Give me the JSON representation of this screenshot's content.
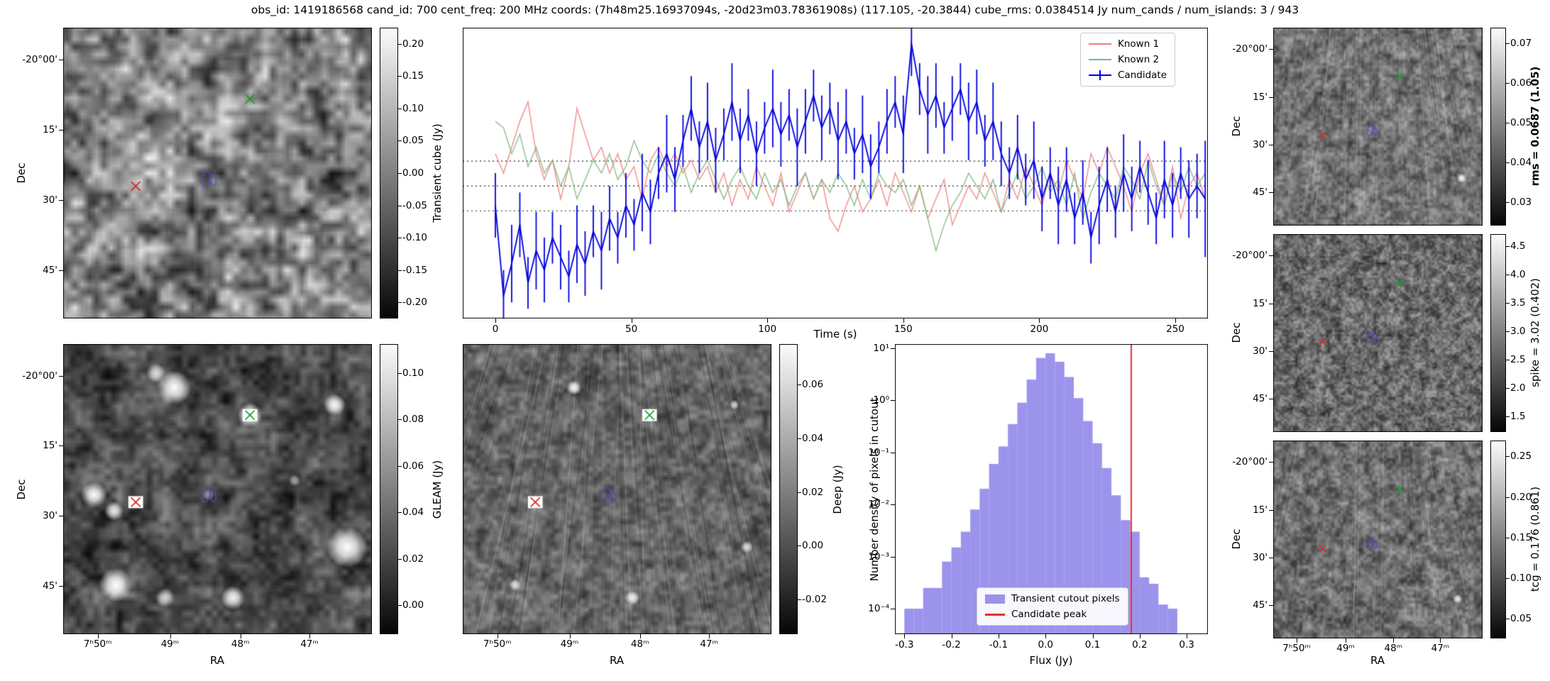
{
  "title": "obs_id: 1419186568 cand_id: 700 cent_freq: 200 MHz coords: (7h48m25.16937094s, -20d23m03.78361908s) (117.105, -20.3844) cube_rms: 0.0384514 Jy num_cands / num_islands: 3 / 943",
  "axis_labels": {
    "dec": "Dec",
    "ra": "RA",
    "time": "Time (s)",
    "flux": "Flux (Jy)"
  },
  "dec_ticks": [
    "-20°00'",
    "15'",
    "30'",
    "45'"
  ],
  "ra_ticks": [
    "7ʰ50ᵐ",
    "49ᵐ",
    "48ᵐ",
    "47ᵐ"
  ],
  "colorbars": {
    "transient": {
      "label": "Transient cube (Jy)",
      "ticks": [
        "0.20",
        "0.15",
        "0.10",
        "0.05",
        "0.00",
        "-0.05",
        "-0.10",
        "-0.15",
        "-0.20"
      ]
    },
    "gleam": {
      "label": "GLEAM (Jy)",
      "ticks": [
        "0.10",
        "0.08",
        "0.06",
        "0.04",
        "0.02",
        "0.00"
      ]
    },
    "deep": {
      "label": "Deep (Jy)",
      "ticks": [
        "0.06",
        "0.04",
        "0.02",
        "0.00",
        "-0.02"
      ]
    },
    "rms": {
      "label": "rms = 0.0687 (1.05)",
      "bold": true,
      "ticks": [
        "0.07",
        "0.06",
        "0.05",
        "0.04",
        "0.03"
      ]
    },
    "spike": {
      "label": "spike = 3.02 (0.402)",
      "ticks": [
        "4.5",
        "4.0",
        "3.5",
        "3.0",
        "2.5",
        "2.0",
        "1.5"
      ]
    },
    "tcg": {
      "label": "tcg = 0.176 (0.861)",
      "ticks": [
        "0.25",
        "0.20",
        "0.15",
        "0.10",
        "0.05"
      ]
    }
  },
  "markers": {
    "known1": {
      "color": "#d42a2a",
      "pos": [
        0.235,
        0.545
      ]
    },
    "known2": {
      "color": "#1f9e2c",
      "pos": [
        0.605,
        0.245
      ]
    },
    "candidate": {
      "color": "#4a4ad0",
      "pos": [
        0.473,
        0.52
      ]
    }
  },
  "images": {
    "gleam_sources": [
      [
        0.36,
        0.15,
        14,
        1.0
      ],
      [
        0.3,
        0.1,
        8,
        0.8
      ],
      [
        0.605,
        0.245,
        10,
        1.0
      ],
      [
        0.88,
        0.21,
        9,
        0.95
      ],
      [
        0.1,
        0.52,
        11,
        1.0
      ],
      [
        0.165,
        0.575,
        8,
        0.9
      ],
      [
        0.92,
        0.7,
        17,
        1.0
      ],
      [
        0.17,
        0.83,
        14,
        1.0
      ],
      [
        0.33,
        0.875,
        8,
        0.8
      ],
      [
        0.55,
        0.875,
        10,
        0.95
      ],
      [
        0.75,
        0.47,
        5,
        0.55
      ],
      [
        0.47,
        0.52,
        5,
        0.5
      ]
    ],
    "deep_sources": [
      [
        0.36,
        0.15,
        6,
        0.95
      ],
      [
        0.605,
        0.245,
        6,
        1.0
      ],
      [
        0.23,
        0.545,
        5,
        0.95
      ],
      [
        0.55,
        0.875,
        6,
        0.9
      ],
      [
        0.17,
        0.83,
        5,
        0.8
      ],
      [
        0.88,
        0.21,
        4,
        0.7
      ],
      [
        0.92,
        0.7,
        5,
        0.8
      ]
    ],
    "right_dots": {
      "rms": [
        [
          0.9,
          0.76,
          4,
          0.95
        ]
      ],
      "spike": [],
      "tcg": [
        [
          0.88,
          0.8,
          4,
          0.9
        ]
      ]
    }
  },
  "chart_data": [
    {
      "type": "line",
      "title": "",
      "xlabel": "Time (s)",
      "ylabel": "",
      "xlim": [
        -12,
        262
      ],
      "ylim": [
        -0.205,
        0.245
      ],
      "x_ticks": [
        0,
        50,
        100,
        150,
        200,
        250
      ],
      "x_step": 3,
      "dotted_hlines": [
        0.0384514,
        0.0,
        -0.0384514
      ],
      "legend_position": "upper right",
      "series": [
        {
          "name": "Known 1",
          "color": "#f08080",
          "values": [
            0.05,
            0.02,
            0.06,
            0.1,
            0.13,
            0.05,
            0.01,
            0.04,
            -0.02,
            0.03,
            0.12,
            0.08,
            0.04,
            0.06,
            0.02,
            0.05,
            0.01,
            0.03,
            -0.02,
            0.04,
            0.06,
            0.03,
            0.05,
            0.02,
            0.04,
            0.01,
            0.03,
            -0.01,
            0.02,
            -0.03,
            0.01,
            -0.02,
            0.03,
            0.0,
            -0.03,
            0.02,
            -0.04,
            -0.01,
            0.02,
            -0.02,
            0.01,
            -0.05,
            -0.07,
            -0.03,
            0.0,
            -0.04,
            -0.02,
            0.01,
            -0.03,
            0.02,
            -0.01,
            -0.04,
            0.0,
            -0.05,
            -0.02,
            0.01,
            -0.06,
            -0.03,
            0.0,
            -0.02,
            0.02,
            -0.01,
            -0.04,
            0.01,
            -0.02,
            0.03,
            0.0,
            -0.03,
            0.02,
            -0.01,
            0.04,
            0.01,
            -0.02,
            0.05,
            0.02,
            0.06,
            0.03,
            0.0,
            -0.04,
            0.02,
            0.05,
            0.01,
            -0.03,
            0.03,
            -0.05,
            0.0,
            0.02,
            -0.02
          ]
        },
        {
          "name": "Known 2",
          "color": "#7cb87c",
          "values": [
            0.1,
            0.09,
            0.05,
            0.08,
            0.03,
            0.06,
            0.02,
            0.04,
            0.0,
            0.03,
            -0.02,
            0.01,
            0.04,
            0.02,
            0.05,
            0.01,
            0.03,
            0.07,
            0.04,
            0.02,
            0.05,
            0.02,
            0.0,
            0.03,
            -0.01,
            0.02,
            0.04,
            0.01,
            -0.02,
            0.01,
            0.03,
            0.0,
            -0.02,
            0.02,
            -0.01,
            0.01,
            -0.03,
            0.0,
            0.02,
            -0.02,
            0.01,
            -0.01,
            0.02,
            0.0,
            -0.03,
            0.01,
            -0.02,
            0.02,
            0.0,
            -0.01,
            0.01,
            -0.03,
            0.0,
            -0.05,
            -0.1,
            -0.06,
            -0.03,
            -0.01,
            0.02,
            0.0,
            -0.02,
            0.01,
            -0.04,
            -0.01,
            0.02,
            -0.02,
            0.0,
            0.03,
            -0.01,
            0.01,
            -0.03,
            0.02,
            -0.05,
            -0.01,
            0.02,
            0.0,
            -0.02,
            0.03,
            0.01,
            -0.02,
            0.04,
            0.0,
            -0.03,
            0.02,
            -0.01,
            0.03,
            0.0,
            0.02
          ]
        },
        {
          "name": "Candidate",
          "color": "#0000dd",
          "values": [
            -0.03,
            -0.17,
            -0.12,
            -0.06,
            -0.15,
            -0.1,
            -0.13,
            -0.08,
            -0.11,
            -0.14,
            -0.09,
            -0.12,
            -0.07,
            -0.1,
            -0.05,
            -0.08,
            -0.03,
            -0.06,
            -0.01,
            -0.04,
            0.02,
            0.05,
            0.01,
            0.07,
            0.12,
            0.06,
            0.1,
            0.04,
            0.08,
            0.13,
            0.07,
            0.11,
            0.05,
            0.09,
            0.12,
            0.08,
            0.11,
            0.06,
            0.1,
            0.14,
            0.09,
            0.12,
            0.07,
            0.1,
            0.05,
            0.08,
            0.03,
            0.06,
            0.1,
            0.13,
            0.08,
            0.22,
            0.15,
            0.11,
            0.14,
            0.09,
            0.12,
            0.15,
            0.1,
            0.13,
            0.07,
            0.1,
            0.05,
            0.02,
            0.06,
            0.01,
            0.04,
            -0.02,
            0.02,
            -0.03,
            0.01,
            -0.05,
            -0.01,
            -0.08,
            -0.03,
            0.01,
            -0.04,
            0.02,
            -0.02,
            0.03,
            -0.01,
            -0.05,
            0.01,
            -0.03,
            0.02,
            -0.02,
            0.0,
            -0.02
          ],
          "errors": [
            0.05,
            0.04,
            0.06,
            0.05,
            0.04,
            0.06,
            0.05,
            0.04,
            0.05,
            0.04,
            0.06,
            0.05,
            0.04,
            0.06,
            0.05,
            0.04,
            0.05,
            0.04,
            0.06,
            0.05,
            0.04,
            0.06,
            0.05,
            0.04,
            0.05,
            0.04,
            0.06,
            0.05,
            0.04,
            0.06,
            0.05,
            0.04,
            0.05,
            0.04,
            0.06,
            0.05,
            0.04,
            0.06,
            0.05,
            0.04,
            0.05,
            0.04,
            0.06,
            0.05,
            0.04,
            0.06,
            0.05,
            0.04,
            0.05,
            0.04,
            0.06,
            0.05,
            0.04,
            0.06,
            0.05,
            0.04,
            0.05,
            0.04,
            0.06,
            0.05,
            0.04,
            0.06,
            0.05,
            0.04,
            0.05,
            0.04,
            0.06,
            0.05,
            0.04,
            0.06,
            0.05,
            0.04,
            0.05,
            0.04,
            0.06,
            0.05,
            0.04,
            0.06,
            0.05,
            0.04,
            0.05,
            0.04,
            0.06,
            0.05,
            0.04,
            0.06,
            0.05,
            0.09
          ]
        }
      ]
    },
    {
      "type": "bar",
      "title": "",
      "xlabel": "Flux (Jy)",
      "ylabel": "Number density of pixels in cutout",
      "x_ticks": [
        -0.3,
        -0.2,
        -0.1,
        0.0,
        0.1,
        0.2,
        0.3
      ],
      "y_ticks": [
        "10¹",
        "10⁰",
        "10⁻¹",
        "10⁻²",
        "10⁻³",
        "10⁻⁴"
      ],
      "y_log_range": [
        -4.49,
        1.08
      ],
      "xlim": [
        -0.32,
        0.345
      ],
      "bin_width": 0.02,
      "bin_centers": [
        -0.29,
        -0.27,
        -0.25,
        -0.23,
        -0.21,
        -0.19,
        -0.17,
        -0.15,
        -0.13,
        -0.11,
        -0.09,
        -0.07,
        -0.05,
        -0.03,
        -0.01,
        0.01,
        0.03,
        0.05,
        0.07,
        0.09,
        0.11,
        0.13,
        0.15,
        0.17,
        0.19,
        0.21,
        0.23,
        0.25,
        0.27,
        0.29
      ],
      "densities": [
        0.0001,
        0.0001,
        0.00025,
        0.00025,
        0.0008,
        0.0015,
        0.003,
        0.008,
        0.02,
        0.06,
        0.13,
        0.35,
        0.9,
        2.5,
        6.5,
        8.0,
        5.5,
        2.8,
        1.1,
        0.4,
        0.15,
        0.05,
        0.015,
        0.005,
        0.003,
        0.0004,
        0.0003,
        0.00012,
        0.0001,
        0
      ],
      "candidate_peak_x": 0.182,
      "bar_color": "rgba(123,112,230,0.75)",
      "line_color": "#e03030",
      "legend": [
        "Transient cutout pixels",
        "Candidate peak"
      ]
    }
  ]
}
